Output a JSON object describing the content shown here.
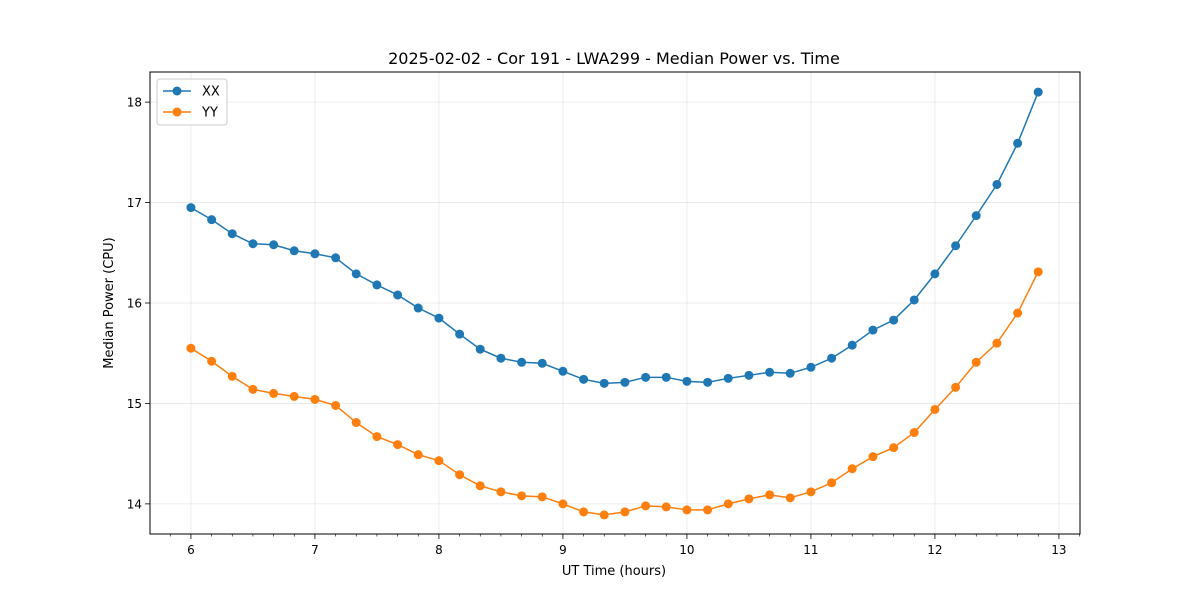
{
  "chart_data": {
    "type": "line",
    "title": "2025-02-02 - Cor 191 - LWA299 - Median Power vs. Time",
    "xlabel": "UT Time (hours)",
    "ylabel": "Median Power (CPU)",
    "xlim": [
      5.67,
      13.17
    ],
    "ylim": [
      13.7,
      18.3
    ],
    "xticks": [
      6,
      7,
      8,
      9,
      10,
      11,
      12,
      13
    ],
    "yticks": [
      14,
      15,
      16,
      17,
      18
    ],
    "grid": true,
    "legend_position": "top-left",
    "x": [
      6.0,
      6.167,
      6.333,
      6.5,
      6.667,
      6.833,
      7.0,
      7.167,
      7.333,
      7.5,
      7.667,
      7.833,
      8.0,
      8.167,
      8.333,
      8.5,
      8.667,
      8.833,
      9.0,
      9.167,
      9.333,
      9.5,
      9.667,
      9.833,
      10.0,
      10.167,
      10.333,
      10.5,
      10.667,
      10.833,
      11.0,
      11.167,
      11.333,
      11.5,
      11.667,
      11.833,
      12.0,
      12.167,
      12.333,
      12.5,
      12.667,
      12.833
    ],
    "series": [
      {
        "name": "XX",
        "color": "#1f77b4",
        "values": [
          16.95,
          16.83,
          16.69,
          16.59,
          16.58,
          16.52,
          16.49,
          16.45,
          16.29,
          16.18,
          16.08,
          15.95,
          15.85,
          15.69,
          15.54,
          15.45,
          15.41,
          15.4,
          15.32,
          15.24,
          15.2,
          15.21,
          15.26,
          15.26,
          15.22,
          15.21,
          15.25,
          15.28,
          15.31,
          15.3,
          15.36,
          15.45,
          15.58,
          15.73,
          15.83,
          16.03,
          16.29,
          16.57,
          16.87,
          17.18,
          17.59,
          18.1
        ]
      },
      {
        "name": "YY",
        "color": "#ff7f0e",
        "values": [
          15.55,
          15.42,
          15.27,
          15.14,
          15.1,
          15.07,
          15.04,
          14.98,
          14.81,
          14.67,
          14.59,
          14.49,
          14.43,
          14.29,
          14.18,
          14.12,
          14.08,
          14.07,
          14.0,
          13.92,
          13.89,
          13.92,
          13.98,
          13.97,
          13.94,
          13.94,
          14.0,
          14.05,
          14.09,
          14.06,
          14.12,
          14.21,
          14.35,
          14.47,
          14.56,
          14.71,
          14.94,
          15.16,
          15.41,
          15.6,
          15.9,
          16.31
        ]
      }
    ]
  }
}
